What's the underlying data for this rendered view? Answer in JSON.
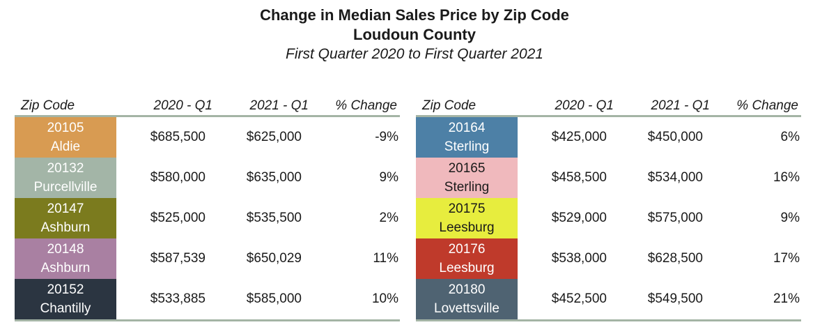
{
  "header": {
    "title": "Change in Median Sales Price by Zip Code",
    "subtitle": "Loudoun County",
    "period": "First Quarter 2020 to First Quarter 2021"
  },
  "columns": {
    "zip": "Zip Code",
    "q2020": "2020 - Q1",
    "q2021": "2021 - Q1",
    "pct": "% Change"
  },
  "colors": {
    "rule": "#A4B4A5",
    "text": "#1A1A1A",
    "background": "#FFFFFF"
  },
  "tables": [
    {
      "rows": [
        {
          "zip": "20105",
          "city": "Aldie",
          "q1_2020": "$685,500",
          "q1_2021": "$625,000",
          "pct_change": "-9%",
          "bg": "#D89B52",
          "fg": "#FFFFFF"
        },
        {
          "zip": "20132",
          "city": "Purcellville",
          "q1_2020": "$580,000",
          "q1_2021": "$635,000",
          "pct_change": "9%",
          "bg": "#A3B5A7",
          "fg": "#FFFFFF"
        },
        {
          "zip": "20147",
          "city": "Ashburn",
          "q1_2020": "$525,000",
          "q1_2021": "$535,500",
          "pct_change": "2%",
          "bg": "#7B7B1E",
          "fg": "#FFFFFF"
        },
        {
          "zip": "20148",
          "city": "Ashburn",
          "q1_2020": "$587,539",
          "q1_2021": "$650,029",
          "pct_change": "11%",
          "bg": "#A980A2",
          "fg": "#FFFFFF"
        },
        {
          "zip": "20152",
          "city": "Chantilly",
          "q1_2020": "$533,885",
          "q1_2021": "$585,000",
          "pct_change": "10%",
          "bg": "#2B3541",
          "fg": "#FFFFFF"
        }
      ]
    },
    {
      "rows": [
        {
          "zip": "20164",
          "city": "Sterling",
          "q1_2020": "$425,000",
          "q1_2021": "$450,000",
          "pct_change": "6%",
          "bg": "#4D80A6",
          "fg": "#FFFFFF"
        },
        {
          "zip": "20165",
          "city": "Sterling",
          "q1_2020": "$458,500",
          "q1_2021": "$534,000",
          "pct_change": "16%",
          "bg": "#F0B9BD",
          "fg": "#1A1A1A"
        },
        {
          "zip": "20175",
          "city": "Leesburg",
          "q1_2020": "$529,000",
          "q1_2021": "$575,000",
          "pct_change": "9%",
          "bg": "#E7ED3E",
          "fg": "#1A1A1A"
        },
        {
          "zip": "20176",
          "city": "Leesburg",
          "q1_2020": "$538,000",
          "q1_2021": "$628,500",
          "pct_change": "17%",
          "bg": "#BF3A2B",
          "fg": "#FFFFFF"
        },
        {
          "zip": "20180",
          "city": "Lovettsville",
          "q1_2020": "$452,500",
          "q1_2021": "$549,500",
          "pct_change": "21%",
          "bg": "#4F6372",
          "fg": "#FFFFFF"
        }
      ]
    }
  ],
  "chart_data": {
    "type": "table",
    "title": "Change in Median Sales Price by Zip Code",
    "subtitle": "Loudoun County",
    "period": "First Quarter 2020 to First Quarter 2021",
    "columns": [
      "Zip Code",
      "2020 - Q1",
      "2021 - Q1",
      "% Change"
    ],
    "rows": [
      {
        "zip": "20105",
        "city": "Aldie",
        "q1_2020": 685500,
        "q1_2021": 625000,
        "pct_change": -9
      },
      {
        "zip": "20132",
        "city": "Purcellville",
        "q1_2020": 580000,
        "q1_2021": 635000,
        "pct_change": 9
      },
      {
        "zip": "20147",
        "city": "Ashburn",
        "q1_2020": 525000,
        "q1_2021": 535500,
        "pct_change": 2
      },
      {
        "zip": "20148",
        "city": "Ashburn",
        "q1_2020": 587539,
        "q1_2021": 650029,
        "pct_change": 11
      },
      {
        "zip": "20152",
        "city": "Chantilly",
        "q1_2020": 533885,
        "q1_2021": 585000,
        "pct_change": 10
      },
      {
        "zip": "20164",
        "city": "Sterling",
        "q1_2020": 425000,
        "q1_2021": 450000,
        "pct_change": 6
      },
      {
        "zip": "20165",
        "city": "Sterling",
        "q1_2020": 458500,
        "q1_2021": 534000,
        "pct_change": 16
      },
      {
        "zip": "20175",
        "city": "Leesburg",
        "q1_2020": 529000,
        "q1_2021": 575000,
        "pct_change": 9
      },
      {
        "zip": "20176",
        "city": "Leesburg",
        "q1_2020": 538000,
        "q1_2021": 628500,
        "pct_change": 17
      },
      {
        "zip": "20180",
        "city": "Lovettsville",
        "q1_2020": 452500,
        "q1_2021": 549500,
        "pct_change": 21
      }
    ]
  }
}
